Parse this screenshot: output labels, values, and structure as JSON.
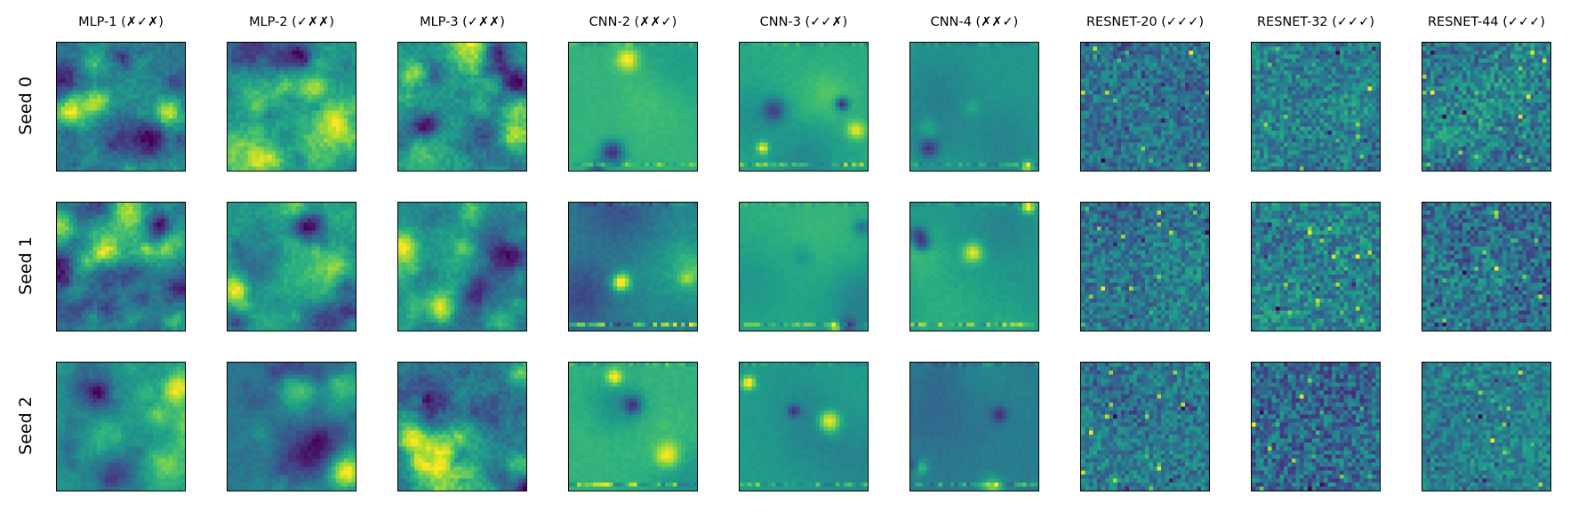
{
  "figure": {
    "columns": [
      {
        "title": "MLP-1 (✗✓✗)"
      },
      {
        "title": "MLP-2 (✓✗✗)"
      },
      {
        "title": "MLP-3 (✓✗✗)"
      },
      {
        "title": "CNN-2 (✗✗✓)"
      },
      {
        "title": "CNN-3 (✓✓✗)"
      },
      {
        "title": "CNN-4 (✗✗✓)"
      },
      {
        "title": "RESNET-20 (✓✓✓)"
      },
      {
        "title": "RESNET-32 (✓✓✓)"
      },
      {
        "title": "RESNET-44 (✓✓✓)"
      }
    ],
    "rows": [
      {
        "label": "Seed 0"
      },
      {
        "label": "Seed 1"
      },
      {
        "label": "Seed 2"
      }
    ],
    "colormap": [
      "#440154",
      "#482878",
      "#3e4989",
      "#31688e",
      "#26828e",
      "#1f9e89",
      "#35b779",
      "#6ece58",
      "#b5de2b",
      "#fde725"
    ]
  }
}
